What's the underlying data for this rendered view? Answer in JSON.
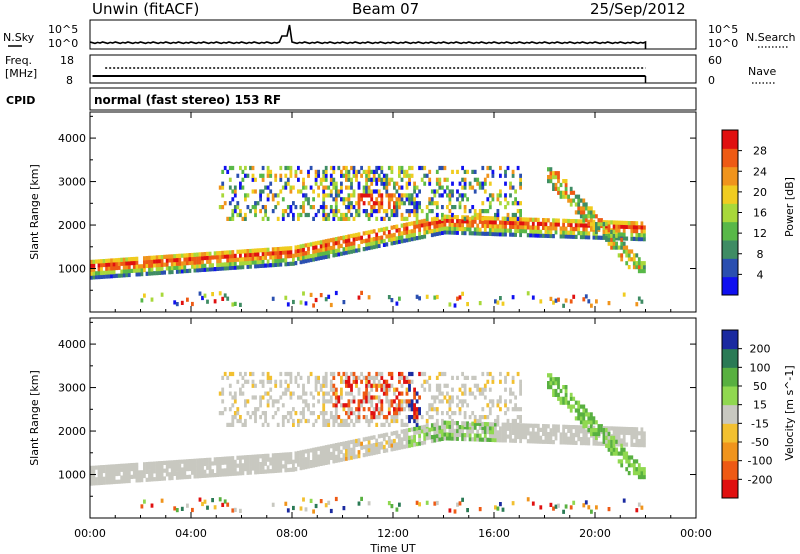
{
  "header": {
    "station": "Unwin (fitACF)",
    "beam": "Beam 07",
    "date": "25/Sep/2012"
  },
  "noise_panel": {
    "left_label": "N.Sky",
    "right_label": "N.Search",
    "left_ticks": [
      "10^5",
      "10^0"
    ],
    "right_ticks": [
      "10^5",
      "10^0"
    ]
  },
  "freq_panel": {
    "left_label_1": "Freq.",
    "left_label_2": "[MHz]",
    "right_label": "Nave",
    "left_ticks": [
      "18",
      "8"
    ],
    "right_ticks": [
      "60",
      "0"
    ]
  },
  "cpid_panel": {
    "label": "CPID",
    "mode_text": "normal (fast stereo) 153 RF"
  },
  "colors": {
    "power_scale": [
      "#1010f0",
      "#2a4fb0",
      "#3f8c64",
      "#58b848",
      "#a8d83a",
      "#f0cc20",
      "#f0941c",
      "#ee5a14",
      "#e01010"
    ],
    "velocity_scale": [
      "#e01010",
      "#ee5a14",
      "#f0941c",
      "#f2c030",
      "#c8c8c0",
      "#90d850",
      "#58b040",
      "#2a7a55",
      "#1a2aa0"
    ]
  },
  "chart_data": [
    {
      "type": "heatmap",
      "name": "power",
      "ylabel": "Slant Range [km]",
      "yticks": [
        1000,
        2000,
        3000,
        4000
      ],
      "ylim": [
        0,
        4600
      ],
      "xlim": [
        0,
        24
      ],
      "colorbar_label": "Power [dB]",
      "colorbar_ticks": [
        "4",
        "8",
        "12",
        "16",
        "20",
        "24",
        "28"
      ],
      "colorbar_range": [
        0,
        32
      ]
    },
    {
      "type": "heatmap",
      "name": "velocity",
      "ylabel": "Slant Range [km]",
      "yticks": [
        1000,
        2000,
        3000,
        4000
      ],
      "ylim": [
        0,
        4600
      ],
      "xlim": [
        0,
        24
      ],
      "colorbar_label": "Velocity [m s^-1]",
      "colorbar_ticks": [
        "200",
        "100",
        "50",
        "15",
        "-15",
        "-50",
        "-100",
        "-200"
      ],
      "xticks": [
        "00:00",
        "04:00",
        "08:00",
        "12:00",
        "16:00",
        "20:00",
        "00:00"
      ],
      "xlabel": "Time UT"
    }
  ]
}
